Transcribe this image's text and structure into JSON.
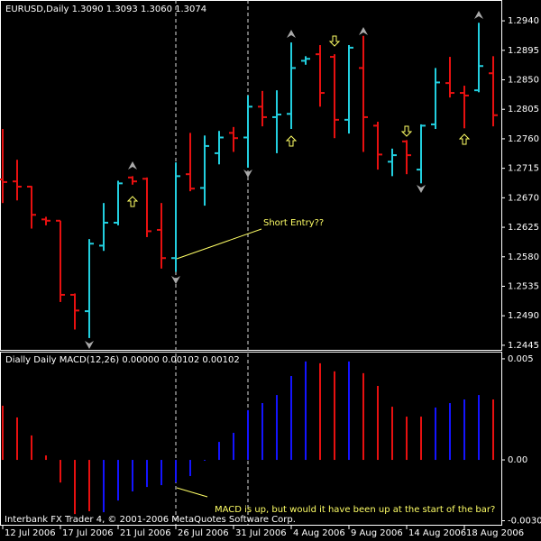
{
  "footer": "Interbank FX Trader 4, © 2001-2006 MetaQuotes Software Corp.",
  "chart_data": [
    {
      "type": "ohlc",
      "title": "EURUSD,Daily  1.3090 1.3093 1.3060 1.3074",
      "annotation": "Short Entry??",
      "categories": [
        "12 Jul 2006",
        null,
        null,
        null,
        "17 Jul 2006",
        null,
        null,
        null,
        "21 Jul 2006",
        null,
        null,
        null,
        "26 Jul 2006",
        null,
        null,
        null,
        "31 Jul 2006",
        null,
        null,
        null,
        "4 Aug 2006",
        null,
        null,
        null,
        "9 Aug 2006",
        null,
        null,
        null,
        "14 Aug 2006",
        null,
        null,
        null,
        "18 Aug 2006",
        null,
        null
      ],
      "open": [
        1.2698,
        1.2695,
        1.2687,
        1.2637,
        1.2635,
        1.2522,
        1.2497,
        1.2597,
        1.2632,
        1.2701,
        1.2699,
        1.2621,
        1.2578,
        1.2706,
        1.2685,
        1.2738,
        1.2769,
        1.2762,
        1.2809,
        1.2793,
        1.2798,
        1.2879,
        1.2889,
        1.2885,
        1.2789,
        1.2868,
        1.278,
        1.2725,
        1.2756,
        1.2713,
        1.2782,
        1.2845,
        1.283,
        1.2834,
        1.286
      ],
      "high": [
        1.2775,
        1.2728,
        1.2688,
        1.2641,
        1.2635,
        1.2524,
        1.2607,
        1.2662,
        1.2696,
        1.2703,
        1.2701,
        1.2662,
        1.2724,
        1.2769,
        1.2765,
        1.2772,
        1.2778,
        1.2826,
        1.2833,
        1.2834,
        1.2907,
        1.2886,
        1.2903,
        1.2889,
        1.2903,
        1.2917,
        1.2786,
        1.2745,
        1.2758,
        1.2782,
        1.2868,
        1.2885,
        1.2841,
        1.2937,
        1.2886
      ],
      "low": [
        1.2662,
        1.2666,
        1.2623,
        1.2628,
        1.2511,
        1.2469,
        1.2456,
        1.2589,
        1.2628,
        1.269,
        1.261,
        1.2562,
        1.2557,
        1.268,
        1.2658,
        1.2721,
        1.274,
        1.2716,
        1.2779,
        1.2738,
        1.2775,
        1.2873,
        1.2809,
        1.2761,
        1.2768,
        1.274,
        1.2713,
        1.2703,
        1.2706,
        1.2692,
        1.2775,
        1.2823,
        1.2776,
        1.2831,
        1.2779
      ],
      "close": [
        1.2694,
        1.2687,
        1.2644,
        1.2635,
        1.2522,
        1.2498,
        1.26,
        1.2632,
        1.2692,
        1.2695,
        1.2619,
        1.2578,
        1.2703,
        1.2684,
        1.2749,
        1.2762,
        1.2761,
        1.2809,
        1.2793,
        1.2797,
        1.2868,
        1.2882,
        1.283,
        1.2789,
        1.2899,
        1.2793,
        1.2736,
        1.2735,
        1.2735,
        1.278,
        1.2846,
        1.283,
        1.2826,
        1.2871,
        1.2796
      ],
      "up_color": "#22cfdf",
      "down_color": "#e81010",
      "ylim": [
        1.2438,
        1.2969
      ],
      "yticks": [
        {
          "value": 1.294,
          "label": "1.2940"
        },
        1.2895,
        {
          "value": 1.285,
          "label": "1.2850"
        },
        1.2805,
        {
          "value": 1.276,
          "label": "1.2760"
        },
        1.2715,
        {
          "value": 1.267,
          "label": "1.2670"
        },
        1.2625,
        {
          "value": 1.258,
          "label": "1.2580"
        },
        1.2535,
        {
          "value": 1.249,
          "label": "1.2490"
        },
        1.2445
      ]
    },
    {
      "type": "bar",
      "title": "Dially Daily MACD(12,26) 0.00000 0.00102 0.00102",
      "annotation": "MACD is up, but would it have been up at the start of the bar?",
      "values": [
        0.00268,
        0.0021,
        0.00121,
        0.00022,
        -0.00112,
        -0.00268,
        -0.00254,
        -0.00259,
        -0.00201,
        -0.00156,
        -0.00134,
        -0.00125,
        -0.00112,
        -0.0008,
        -4e-05,
        0.00089,
        0.00134,
        0.00246,
        0.00281,
        0.00321,
        0.00415,
        0.00487,
        0.00478,
        0.00438,
        0.00487,
        0.00429,
        0.00366,
        0.00263,
        0.00214,
        0.00214,
        0.00259,
        0.00281,
        0.00299,
        0.00321,
        0.00299
      ],
      "colors": [
        "#e81010",
        "#e81010",
        "#e81010",
        "#e81010",
        "#e81010",
        "#e81010",
        "#e81010",
        "#1414ff",
        "#1414ff",
        "#1414ff",
        "#1414ff",
        "#1414ff",
        "#1414ff",
        "#1414ff",
        "#1414ff",
        "#1414ff",
        "#1414ff",
        "#1414ff",
        "#1414ff",
        "#1414ff",
        "#1414ff",
        "#1414ff",
        "#e81010",
        "#e81010",
        "#1414ff",
        "#e81010",
        "#e81010",
        "#e81010",
        "#e81010",
        "#e81010",
        "#1414ff",
        "#1414ff",
        "#1414ff",
        "#1414ff",
        "#e81010"
      ],
      "ylim": [
        -0.00321,
        0.00531
      ],
      "yticks": [
        0.005,
        {
          "value": 0,
          "label": "0.00"
        },
        -0.00301
      ]
    }
  ]
}
